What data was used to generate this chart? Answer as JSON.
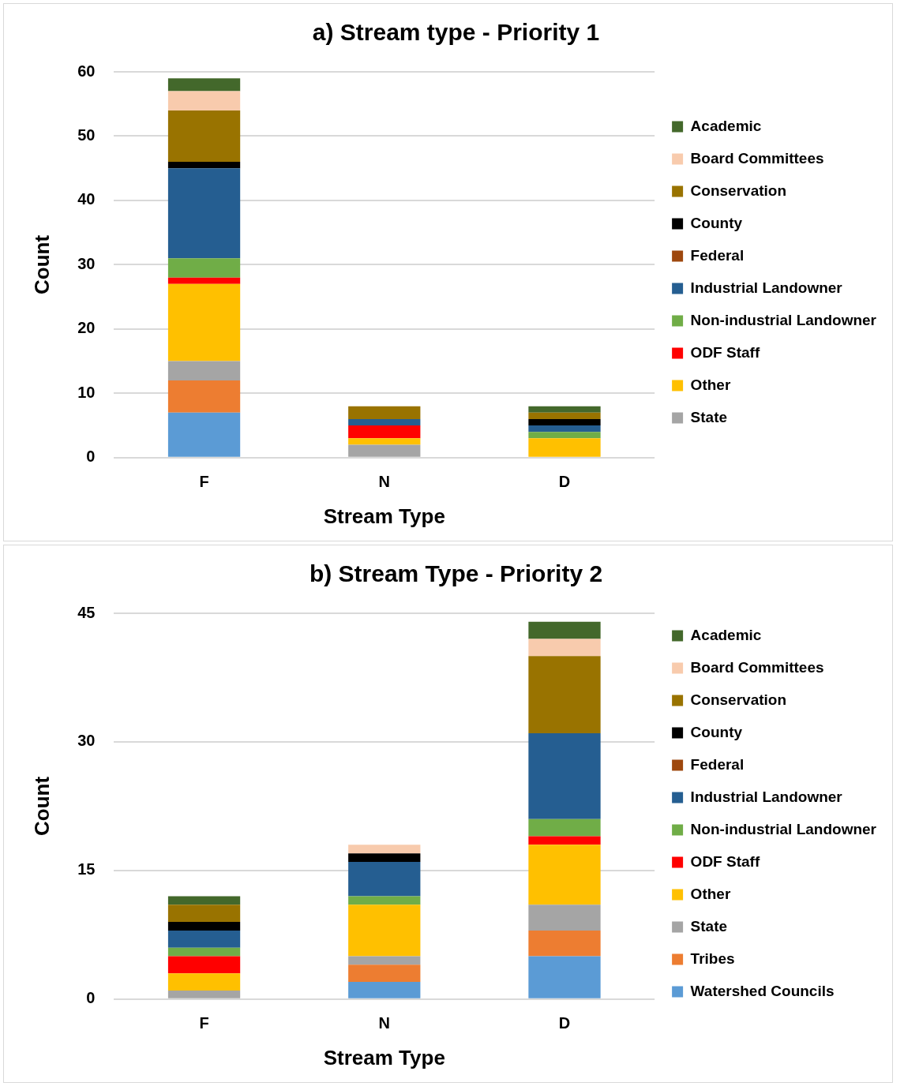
{
  "chart_data": [
    {
      "type": "bar",
      "title": "a) Stream type - Priority 1",
      "xlabel": "Stream Type",
      "ylabel": "Count",
      "categories": [
        "F",
        "N",
        "D"
      ],
      "stacked": true,
      "ylim": [
        0,
        60
      ],
      "yticks": [
        0,
        10,
        20,
        30,
        40,
        50,
        60
      ],
      "grid": "y",
      "legend": "right",
      "series": [
        {
          "color": "#5b9bd5",
          "values": [
            7,
            0,
            0
          ]
        },
        {
          "color": "#ed7d31",
          "values": [
            5,
            0,
            0
          ]
        },
        {
          "name": "State",
          "color": "#a5a5a5",
          "values": [
            3,
            2,
            0
          ]
        },
        {
          "name": "Other",
          "color": "#ffc000",
          "values": [
            12,
            1,
            3
          ]
        },
        {
          "name": "ODF Staff",
          "color": "#ff0000",
          "values": [
            1,
            2,
            0
          ]
        },
        {
          "name": "Non-industrial Landowner",
          "color": "#70ad47",
          "values": [
            3,
            0,
            1
          ]
        },
        {
          "name": "Industrial Landowner",
          "color": "#255e91",
          "values": [
            14,
            1,
            1
          ]
        },
        {
          "name": "Federal",
          "color": "#9e480e",
          "values": [
            0,
            0,
            0
          ]
        },
        {
          "name": "County",
          "color": "#000000",
          "values": [
            1,
            0,
            1
          ]
        },
        {
          "name": "Conservation",
          "color": "#997300",
          "values": [
            8,
            2,
            1
          ]
        },
        {
          "name": "Board Committees",
          "color": "#f8cbad",
          "values": [
            3,
            0,
            0
          ]
        },
        {
          "name": "Academic",
          "color": "#43682b",
          "values": [
            2,
            0,
            1
          ]
        }
      ]
    },
    {
      "type": "bar",
      "title": "b) Stream Type - Priority 2",
      "xlabel": "Stream Type",
      "ylabel": "Count",
      "categories": [
        "F",
        "N",
        "D"
      ],
      "stacked": true,
      "ylim": [
        0,
        45
      ],
      "yticks": [
        0,
        15,
        30,
        45
      ],
      "grid": "y",
      "legend": "right",
      "series": [
        {
          "name": "Watershed Councils",
          "color": "#5b9bd5",
          "values": [
            0,
            2,
            5
          ]
        },
        {
          "name": "Tribes",
          "color": "#ed7d31",
          "values": [
            0,
            2,
            3
          ]
        },
        {
          "name": "State",
          "color": "#a5a5a5",
          "values": [
            1,
            1,
            3
          ]
        },
        {
          "name": "Other",
          "color": "#ffc000",
          "values": [
            2,
            6,
            7
          ]
        },
        {
          "name": "ODF Staff",
          "color": "#ff0000",
          "values": [
            2,
            0,
            1
          ]
        },
        {
          "name": "Non-industrial Landowner",
          "color": "#70ad47",
          "values": [
            1,
            1,
            2
          ]
        },
        {
          "name": "Industrial Landowner",
          "color": "#255e91",
          "values": [
            2,
            4,
            10
          ]
        },
        {
          "name": "Federal",
          "color": "#9e480e",
          "values": [
            0,
            0,
            0
          ]
        },
        {
          "name": "County",
          "color": "#000000",
          "values": [
            1,
            1,
            0
          ]
        },
        {
          "name": "Conservation",
          "color": "#997300",
          "values": [
            2,
            0,
            9
          ]
        },
        {
          "name": "Board Committees",
          "color": "#f8cbad",
          "values": [
            0,
            1,
            2
          ]
        },
        {
          "name": "Academic",
          "color": "#43682b",
          "values": [
            1,
            0,
            2
          ]
        }
      ]
    }
  ]
}
